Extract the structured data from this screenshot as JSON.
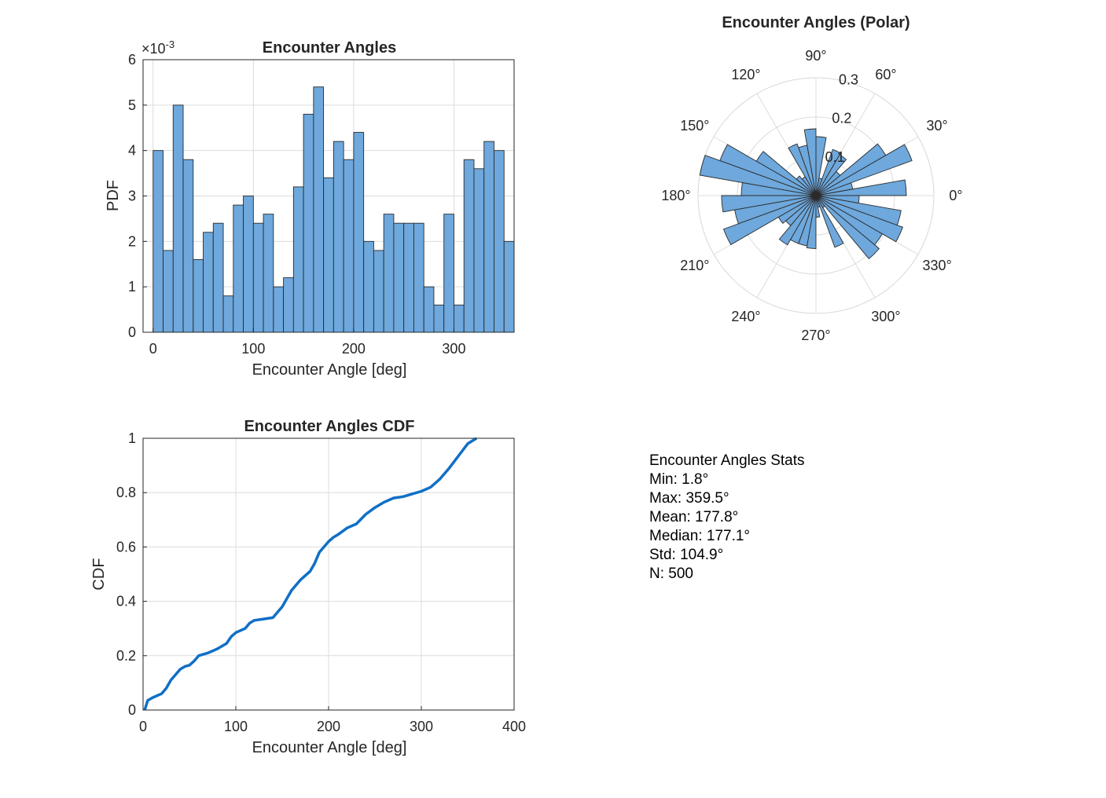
{
  "chart_data": [
    {
      "type": "bar",
      "title": "Encounter Angles",
      "xlabel": "Encounter Angle [deg]",
      "ylabel": "PDF",
      "y_exponent_label": "×10",
      "y_exponent": "-3",
      "bin_width": 10,
      "bin_start": 0,
      "values_e3": [
        4.0,
        1.8,
        5.0,
        3.8,
        1.6,
        2.2,
        2.4,
        0.8,
        2.8,
        3.0,
        2.4,
        2.6,
        1.0,
        1.2,
        3.2,
        4.8,
        5.4,
        3.4,
        4.2,
        3.8,
        4.4,
        2.0,
        1.8,
        2.6,
        2.4,
        2.4,
        2.4,
        1.0,
        0.6,
        2.6,
        0.6,
        3.8,
        3.6,
        4.2,
        4.0,
        2.0
      ],
      "xlim": [
        -10,
        360
      ],
      "ylim": [
        0,
        6
      ],
      "xticks": [
        0,
        100,
        200,
        300
      ],
      "yticks": [
        0,
        1,
        2,
        3,
        4,
        5,
        6
      ],
      "grid": true,
      "bar_color": "#6ea8dc"
    },
    {
      "type": "bar",
      "polar": true,
      "title": "Encounter Angles (Polar)",
      "angle_ticks": [
        "0°",
        "30°",
        "60°",
        "90°",
        "120°",
        "150°",
        "180°",
        "210°",
        "240°",
        "270°",
        "300°",
        "330°"
      ],
      "radial_ticks": [
        0.1,
        0.2,
        0.3
      ],
      "rlim": [
        0,
        0.3
      ],
      "bin_width_deg": 10,
      "values": [
        0.23,
        0.095,
        0.26,
        0.205,
        0.08,
        0.12,
        0.125,
        0.045,
        0.15,
        0.17,
        0.13,
        0.14,
        0.055,
        0.065,
        0.175,
        0.26,
        0.3,
        0.19,
        0.24,
        0.21,
        0.25,
        0.11,
        0.1,
        0.145,
        0.13,
        0.13,
        0.135,
        0.055,
        0.03,
        0.14,
        0.035,
        0.21,
        0.195,
        0.235,
        0.22,
        0.11
      ],
      "grid": true,
      "bar_color": "#6ea8dc"
    },
    {
      "type": "line",
      "title": "Encounter Angles CDF",
      "xlabel": "Encounter Angle [deg]",
      "ylabel": "CDF",
      "xlim": [
        0,
        400
      ],
      "ylim": [
        0,
        1
      ],
      "xticks": [
        0,
        100,
        200,
        300,
        400
      ],
      "yticks": [
        0,
        0.2,
        0.4,
        0.6,
        0.8,
        1
      ],
      "ytick_labels": [
        "0",
        "0.2",
        "0.4",
        "0.6",
        "0.8",
        "1"
      ],
      "grid": true,
      "line_color": "#0f6fc6",
      "x": [
        1.8,
        5,
        10,
        20,
        25,
        30,
        35,
        40,
        45,
        50,
        55,
        60,
        70,
        80,
        90,
        95,
        100,
        110,
        115,
        120,
        130,
        140,
        145,
        150,
        160,
        170,
        180,
        185,
        190,
        195,
        200,
        205,
        210,
        220,
        230,
        240,
        250,
        260,
        270,
        280,
        290,
        300,
        310,
        320,
        330,
        340,
        350,
        359.5
      ],
      "y": [
        0.0,
        0.035,
        0.045,
        0.06,
        0.08,
        0.11,
        0.13,
        0.15,
        0.16,
        0.165,
        0.18,
        0.2,
        0.21,
        0.225,
        0.245,
        0.27,
        0.285,
        0.3,
        0.32,
        0.33,
        0.335,
        0.34,
        0.36,
        0.38,
        0.44,
        0.48,
        0.51,
        0.54,
        0.58,
        0.6,
        0.62,
        0.635,
        0.645,
        0.67,
        0.685,
        0.72,
        0.745,
        0.765,
        0.78,
        0.785,
        0.795,
        0.805,
        0.82,
        0.85,
        0.89,
        0.935,
        0.98,
        1.0
      ]
    }
  ],
  "stats": {
    "title": "Encounter Angles Stats",
    "lines": [
      "Min: 1.8°",
      "Max: 359.5°",
      "Mean: 177.8°",
      "Median: 177.1°",
      "Std: 104.9°",
      "N: 500"
    ]
  }
}
